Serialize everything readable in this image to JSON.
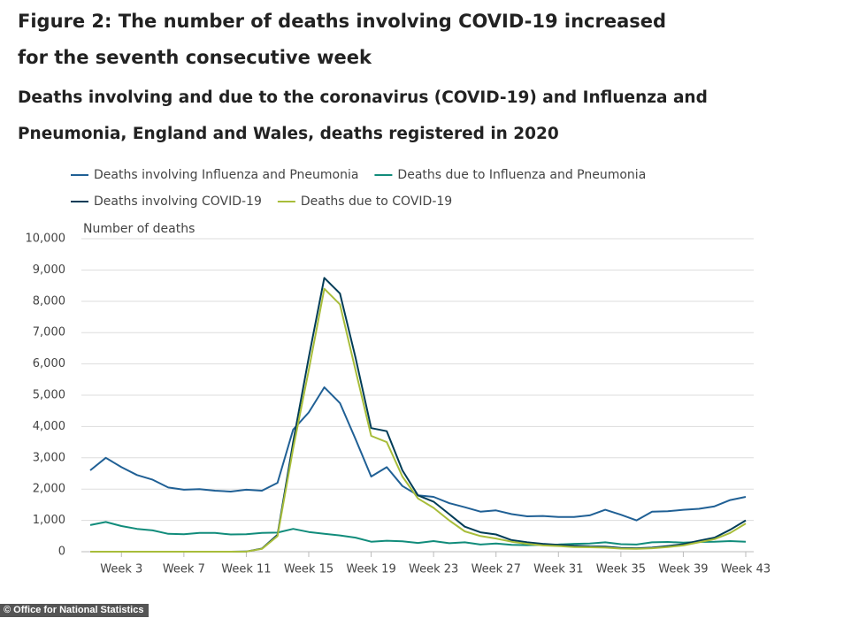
{
  "chart_data": {
    "type": "line",
    "title": "Figure 2: The number of deaths involving COVID-19 increased for the seventh consecutive week",
    "subtitle": "Deaths involving and due to the coronavirus (COVID-19) and Influenza and Pneumonia, England and Wales, deaths registered in 2020",
    "y_label": "Number of deaths",
    "source": "© Office for National Statistics",
    "categories": [
      null,
      null,
      "Week 3",
      null,
      null,
      null,
      "Week 7",
      null,
      null,
      null,
      "Week 11",
      null,
      null,
      null,
      "Week 15",
      null,
      null,
      null,
      "Week 19",
      null,
      null,
      null,
      "Week 23",
      null,
      null,
      null,
      "Week 27",
      null,
      null,
      null,
      "Week 31",
      null,
      null,
      null,
      "Week 35",
      null,
      null,
      null,
      "Week 39",
      null,
      null,
      null,
      "Week 43"
    ],
    "ylim": [
      0,
      10000
    ],
    "yticks": [
      0,
      {
        "value": 1000,
        "label": "1,000"
      },
      {
        "value": 2000,
        "label": "2,000"
      },
      {
        "value": 3000,
        "label": "3,000"
      },
      {
        "value": 4000,
        "label": "4,000"
      },
      {
        "value": 5000,
        "label": "5,000"
      },
      {
        "value": 6000,
        "label": "6,000"
      },
      {
        "value": 7000,
        "label": "7,000"
      },
      {
        "value": 8000,
        "label": "8,000"
      },
      {
        "value": 9000,
        "label": "9,000"
      },
      {
        "value": 10000,
        "label": "10,000"
      }
    ],
    "grid": true,
    "series": [
      {
        "name": "Deaths involving Influenza and Pneumonia",
        "color": "#206095",
        "values": [
          2600,
          3000,
          2700,
          2450,
          2300,
          2050,
          1980,
          2000,
          1950,
          1920,
          1980,
          1950,
          2200,
          3900,
          4450,
          5250,
          4750,
          3600,
          2400,
          2700,
          2100,
          1800,
          1750,
          1550,
          1420,
          1280,
          1320,
          1200,
          1130,
          1140,
          1110,
          1110,
          1160,
          1340,
          1180,
          1000,
          1280,
          1290,
          1340,
          1370,
          1450,
          1650,
          1750
        ]
      },
      {
        "name": "Deaths due to Influenza and Pneumonia",
        "color": "#118c7b",
        "values": [
          850,
          950,
          820,
          730,
          680,
          570,
          560,
          600,
          600,
          550,
          560,
          600,
          610,
          730,
          630,
          570,
          520,
          450,
          320,
          350,
          330,
          280,
          340,
          270,
          300,
          230,
          260,
          220,
          210,
          220,
          230,
          250,
          260,
          300,
          240,
          230,
          300,
          310,
          290,
          310,
          320,
          340,
          320
        ]
      },
      {
        "name": "Deaths involving COVID-19",
        "color": "#003c57",
        "values": [
          0,
          0,
          0,
          0,
          0,
          0,
          0,
          0,
          0,
          0,
          5,
          100,
          540,
          3500,
          6200,
          8750,
          8250,
          6200,
          3950,
          3850,
          2600,
          1800,
          1600,
          1200,
          800,
          620,
          550,
          370,
          300,
          250,
          220,
          190,
          170,
          160,
          120,
          110,
          130,
          180,
          240,
          350,
          450,
          700,
          1000
        ]
      },
      {
        "name": "Deaths due to COVID-19",
        "color": "#a8bd3a",
        "values": [
          0,
          0,
          0,
          0,
          0,
          0,
          0,
          0,
          0,
          0,
          3,
          90,
          500,
          3300,
          5800,
          8400,
          7900,
          5800,
          3700,
          3500,
          2400,
          1700,
          1400,
          1000,
          650,
          500,
          420,
          320,
          250,
          200,
          180,
          150,
          140,
          130,
          100,
          90,
          110,
          150,
          200,
          300,
          400,
          600,
          900
        ]
      }
    ]
  }
}
